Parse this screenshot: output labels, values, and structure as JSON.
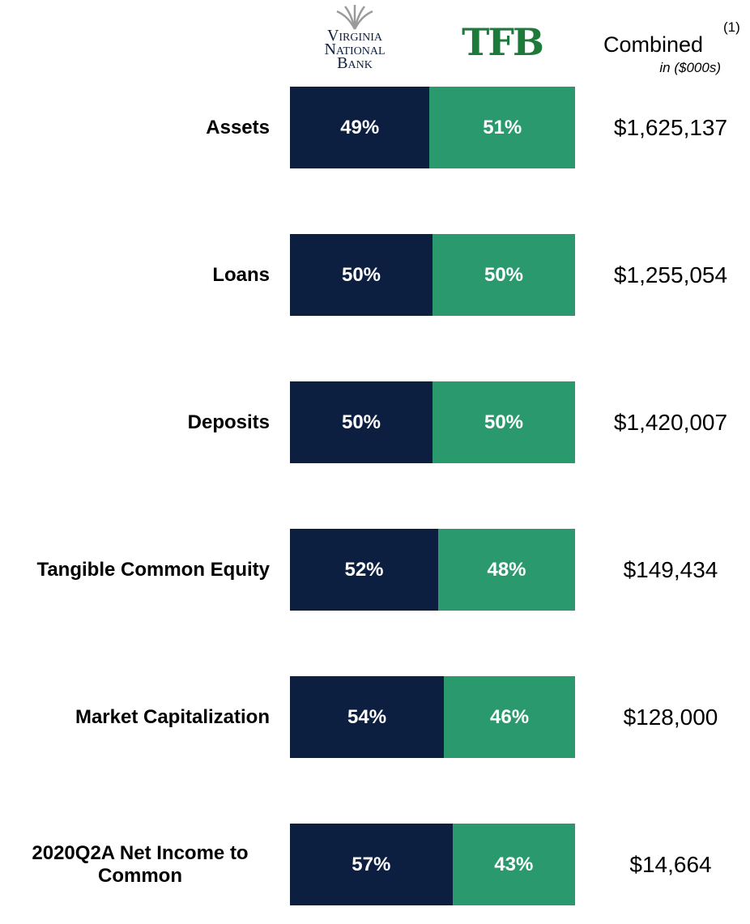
{
  "chart_data": {
    "type": "bar",
    "orientation": "horizontal",
    "stacked": true,
    "categories": [
      "Assets",
      "Loans",
      "Deposits",
      "Tangible Common Equity",
      "Market Capitalization",
      "2020Q2A Net Income to Common"
    ],
    "xlim": [
      0,
      100
    ],
    "series": [
      {
        "name": "Virginia National Bank",
        "color": "#0c1f41",
        "values": [
          49,
          50,
          50,
          52,
          54,
          57
        ],
        "value_labels": [
          "49%",
          "50%",
          "50%",
          "52%",
          "54%",
          "57%"
        ]
      },
      {
        "name": "TFB",
        "color": "#2a9a6e",
        "values": [
          51,
          50,
          50,
          48,
          46,
          43
        ],
        "value_labels": [
          "51%",
          "50%",
          "50%",
          "48%",
          "46%",
          "43%"
        ]
      }
    ],
    "combined": {
      "header": "Combined",
      "note": "(1)",
      "unit": "in ($000s)",
      "labels": [
        "$1,625,137",
        "$1,255,054",
        "$1,420,007",
        "$149,434",
        "$128,000",
        "$14,664"
      ]
    }
  }
}
